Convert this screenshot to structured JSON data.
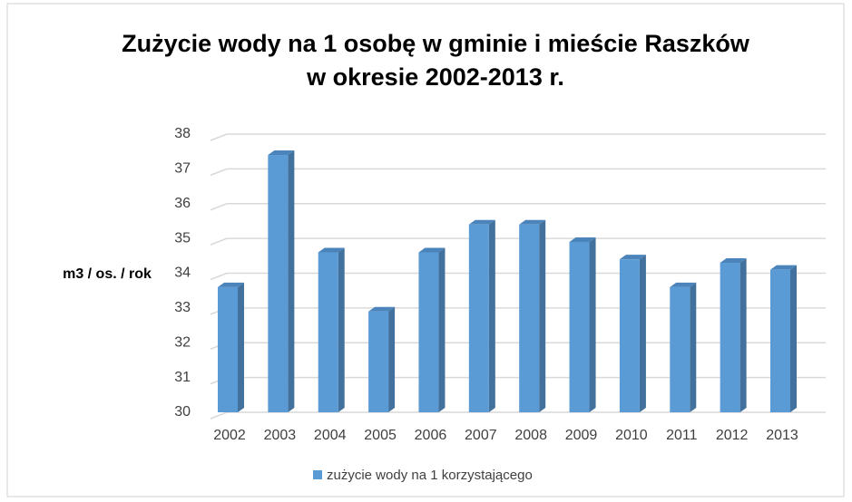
{
  "chart_data": {
    "type": "bar",
    "title": [
      "Zużycie wody na 1 osobę w gminie i mieście Raszków",
      "w okresie 2002-2013 r."
    ],
    "y_label": "m3 / os. / rok",
    "categories": [
      "2002",
      "2003",
      "2004",
      "2005",
      "2006",
      "2007",
      "2008",
      "2009",
      "2010",
      "2011",
      "2012",
      "2013"
    ],
    "series": [
      {
        "name": "zużycie wody na 1 korzystającego",
        "color": "#5b9bd5",
        "values": [
          33.6,
          37.4,
          34.6,
          32.9,
          34.6,
          35.4,
          35.4,
          34.9,
          34.4,
          33.6,
          34.3,
          34.1
        ]
      }
    ],
    "ylim": [
      30,
      38
    ],
    "yticks": [
      30,
      31,
      32,
      33,
      34,
      35,
      36,
      37,
      38
    ],
    "grid": true,
    "legend": "bottom"
  }
}
